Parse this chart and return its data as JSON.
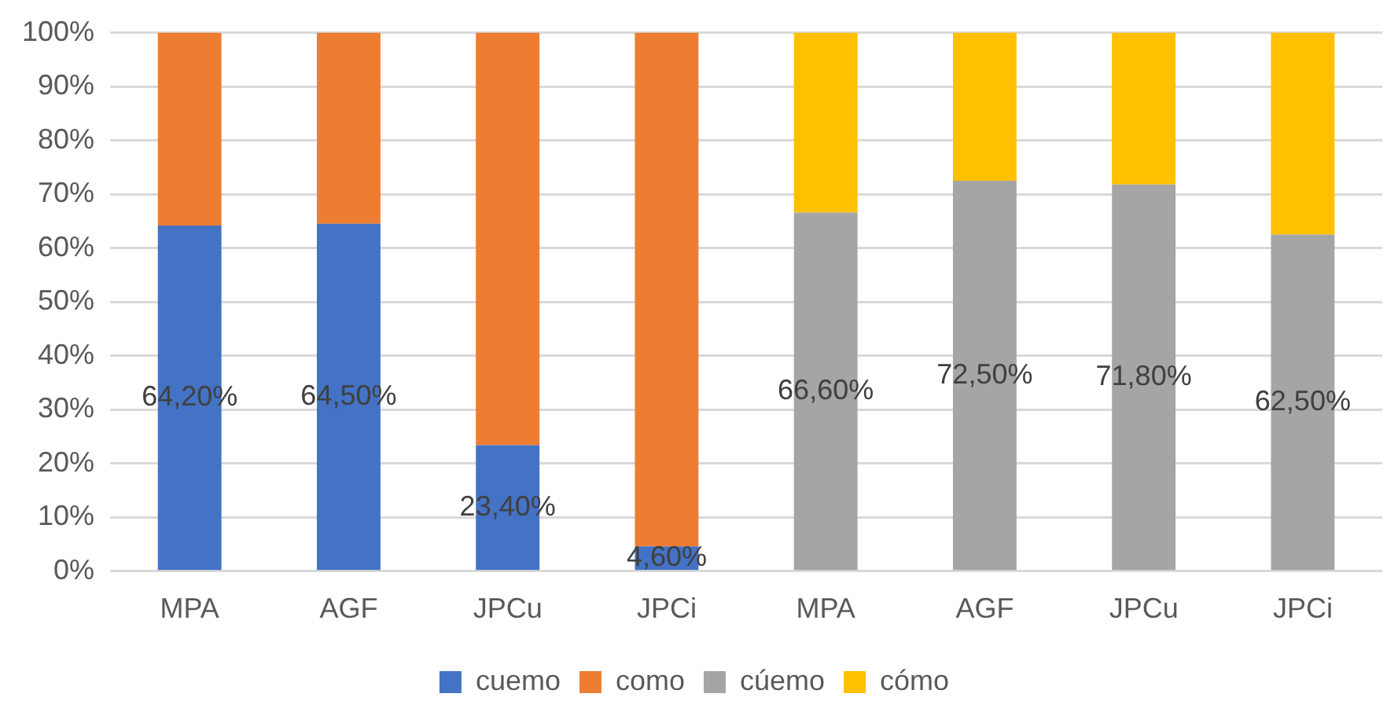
{
  "chart_data": {
    "type": "bar",
    "stacked": true,
    "categories": [
      "MPA",
      "AGF",
      "JPCu",
      "JPCi",
      "MPA",
      "AGF",
      "JPCu",
      "JPCi"
    ],
    "series": [
      {
        "name": "cuemo",
        "color": "#4472c4",
        "values": [
          64.2,
          64.5,
          23.4,
          4.6,
          null,
          null,
          null,
          null
        ],
        "value_labels": [
          "64,20%",
          "64,50%",
          "23,40%",
          "4,60%",
          null,
          null,
          null,
          null
        ]
      },
      {
        "name": "como",
        "color": "#ed7d31",
        "values": [
          35.8,
          35.5,
          76.6,
          95.4,
          null,
          null,
          null,
          null
        ]
      },
      {
        "name": "cúemo",
        "color": "#a5a5a5",
        "values": [
          null,
          null,
          null,
          null,
          66.6,
          72.5,
          71.8,
          62.5
        ],
        "value_labels": [
          null,
          null,
          null,
          null,
          "66,60%",
          "72,50%",
          "71,80%",
          "62,50%"
        ]
      },
      {
        "name": "cómo",
        "color": "#ffc000",
        "values": [
          null,
          null,
          null,
          null,
          33.4,
          27.5,
          28.2,
          37.5
        ]
      }
    ],
    "ylim": [
      0,
      100
    ],
    "yticks": [
      {
        "value": 0,
        "label": "0%"
      },
      {
        "value": 10,
        "label": "10%"
      },
      {
        "value": 20,
        "label": "20%"
      },
      {
        "value": 30,
        "label": "30%"
      },
      {
        "value": 40,
        "label": "40%"
      },
      {
        "value": 50,
        "label": "50%"
      },
      {
        "value": 60,
        "label": "60%"
      },
      {
        "value": 70,
        "label": "70%"
      },
      {
        "value": 80,
        "label": "80%"
      },
      {
        "value": 90,
        "label": "90%"
      },
      {
        "value": 100,
        "label": "100%"
      }
    ],
    "grid": "y",
    "legend": "bottom"
  }
}
